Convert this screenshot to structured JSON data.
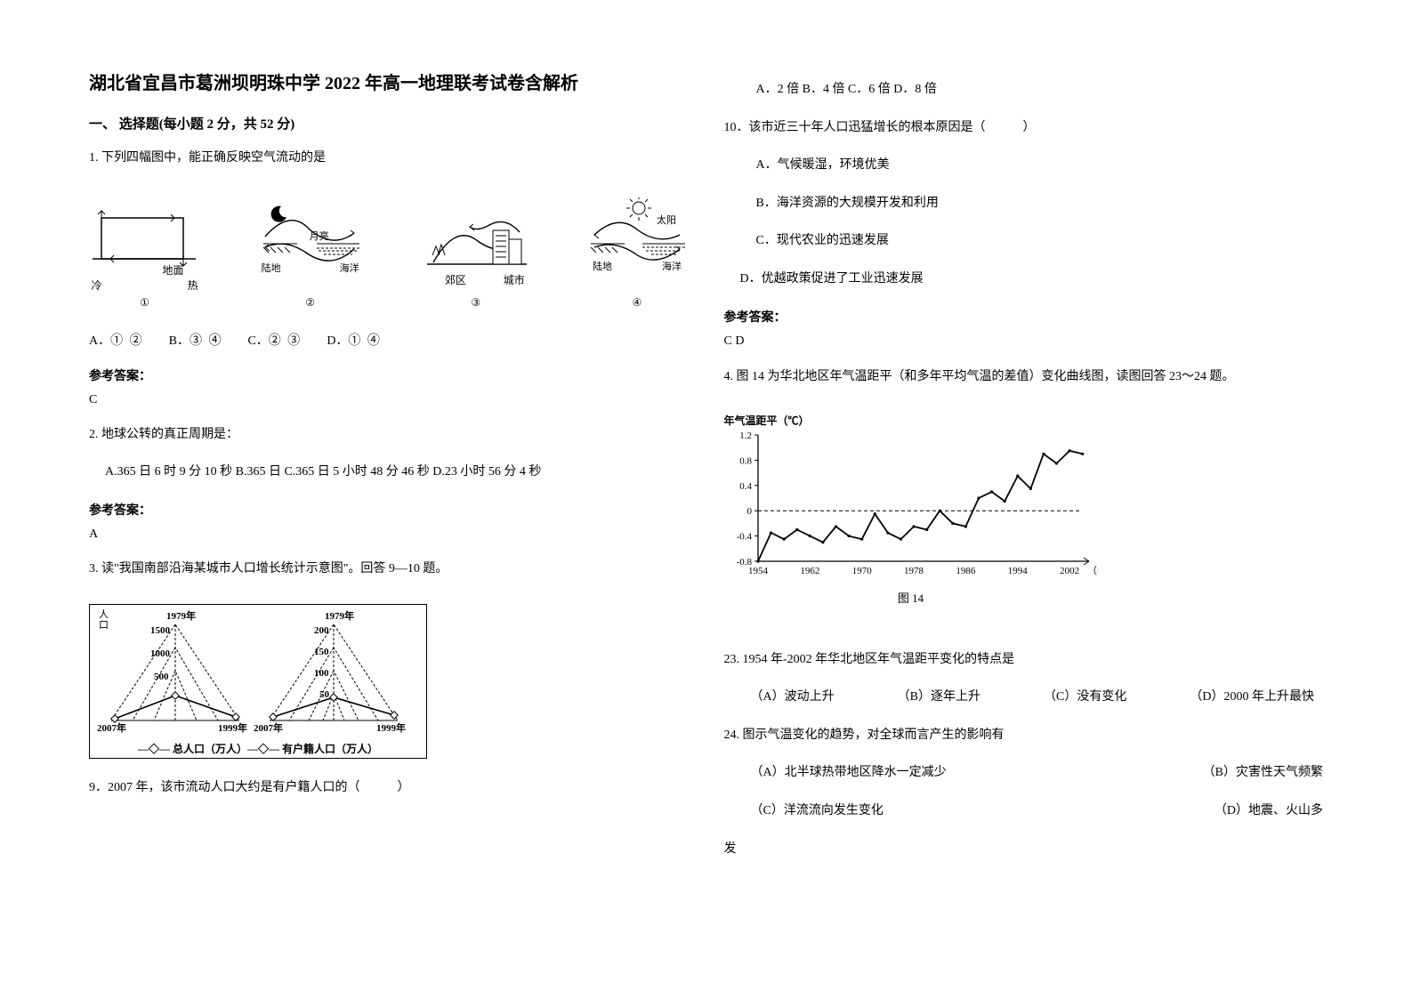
{
  "title": "湖北省宜昌市葛洲坝明珠中学 2022 年高一地理联考试卷含解析",
  "section1": "一、 选择题(每小题 2 分，共 52 分)",
  "q1": {
    "text": "1. 下列四幅图中，能正确反映空气流动的是",
    "diagrams": {
      "d1": {
        "left": "冷",
        "right": "热",
        "surface": "地面",
        "num": "①"
      },
      "d2": {
        "moon": "月亮",
        "land": "陆地",
        "sea": "海洋",
        "num": "②"
      },
      "d3": {
        "left": "郊区",
        "right": "城市",
        "num": "③"
      },
      "d4": {
        "sun": "太阳",
        "land": "陆地",
        "sea": "海洋",
        "num": "④"
      }
    },
    "options": {
      "A": "A．① ②",
      "B": "B．③ ④",
      "C": "C．② ③",
      "D": "D．① ④"
    },
    "answer_label": "参考答案：",
    "answer": "C"
  },
  "q2": {
    "text": "2. 地球公转的真正周期是：",
    "options": "A.365 日 6 时 9 分 10 秒   B.365 日   C.365 日 5 小时 48 分 46 秒   D.23 小时 56 分 4 秒",
    "answer_label": "参考答案：",
    "answer": "A"
  },
  "q3": {
    "intro": "3. 读\"我国南部沿海某城市人口增长统计示意图\"。回答 9—10 题。",
    "chart": {
      "year_tl": "1979年",
      "year_tr": "1979年",
      "left_vals": [
        "1500",
        "1000",
        "500"
      ],
      "right_vals": [
        "200",
        "150",
        "100",
        "50"
      ],
      "bl": "2007年",
      "bm": "1999年",
      "bc": "2007年",
      "br": "1999年",
      "legend": "—◇— 总人口（万人）—◇— 有户籍人口（万人）"
    },
    "q9": "9．2007 年，该市流动人口大约是有户籍人口的（　　　）"
  },
  "q3_right": {
    "q9_opts": "A．2 倍  B．4 倍  C．6 倍  D．8 倍",
    "q10": "10．该市近三十年人口迅猛增长的根本原因是（　　　）",
    "q10A": "A．气候暖湿，环境优美",
    "q10B": "B．海洋资源的大规模开发和利用",
    "q10C": "C．现代农业的迅速发展",
    "q10D": "D．优越政策促进了工业迅速发展",
    "answer_label": "参考答案：",
    "answer": "C  D"
  },
  "q4": {
    "text": "4. 图 14 为华北地区年气温距平（和多年平均气温的差值）变化曲线图，读图回答 23～24 题。",
    "chart": {
      "ylabel": "年气温距平（℃）",
      "yticks": [
        "1.2",
        "0.8",
        "0.4",
        "0",
        "-0.4",
        "-0.8"
      ],
      "xticks": [
        "1954",
        "1962",
        "1970",
        "1978",
        "1986",
        "1994",
        "2002"
      ],
      "xlabel_right": "（年份）",
      "caption": "图 14",
      "bg": "#ffffff",
      "axis_color": "#000000",
      "line_color": "#000000",
      "ylim": [
        -0.8,
        1.2
      ],
      "xlim": [
        1954,
        2005
      ],
      "data": [
        [
          1954,
          -0.8
        ],
        [
          1956,
          -0.35
        ],
        [
          1958,
          -0.45
        ],
        [
          1960,
          -0.3
        ],
        [
          1962,
          -0.4
        ],
        [
          1964,
          -0.5
        ],
        [
          1966,
          -0.25
        ],
        [
          1968,
          -0.4
        ],
        [
          1970,
          -0.45
        ],
        [
          1972,
          -0.05
        ],
        [
          1974,
          -0.35
        ],
        [
          1976,
          -0.45
        ],
        [
          1978,
          -0.25
        ],
        [
          1980,
          -0.3
        ],
        [
          1982,
          0.0
        ],
        [
          1984,
          -0.2
        ],
        [
          1986,
          -0.25
        ],
        [
          1988,
          0.2
        ],
        [
          1990,
          0.3
        ],
        [
          1992,
          0.15
        ],
        [
          1994,
          0.55
        ],
        [
          1996,
          0.35
        ],
        [
          1998,
          0.9
        ],
        [
          2000,
          0.75
        ],
        [
          2002,
          0.95
        ],
        [
          2004,
          0.9
        ]
      ]
    },
    "q23": "23. 1954 年-2002 年华北地区年气温距平变化的特点是",
    "q23_opts": {
      "A": "（A）波动上升",
      "B": "（B）逐年上升",
      "C": "（C）没有变化",
      "D": "（D）2000 年上升最快"
    },
    "q24": "24. 图示气温变化的趋势，对全球而言产生的影响有",
    "q24_opts": {
      "A": "（A）北半球热带地区降水一定减少",
      "B": "（B）灾害性天气频繁",
      "C": "（C）洋流流向发生变化",
      "D": "（D）地震、火山多"
    },
    "q24_trail": "发"
  }
}
